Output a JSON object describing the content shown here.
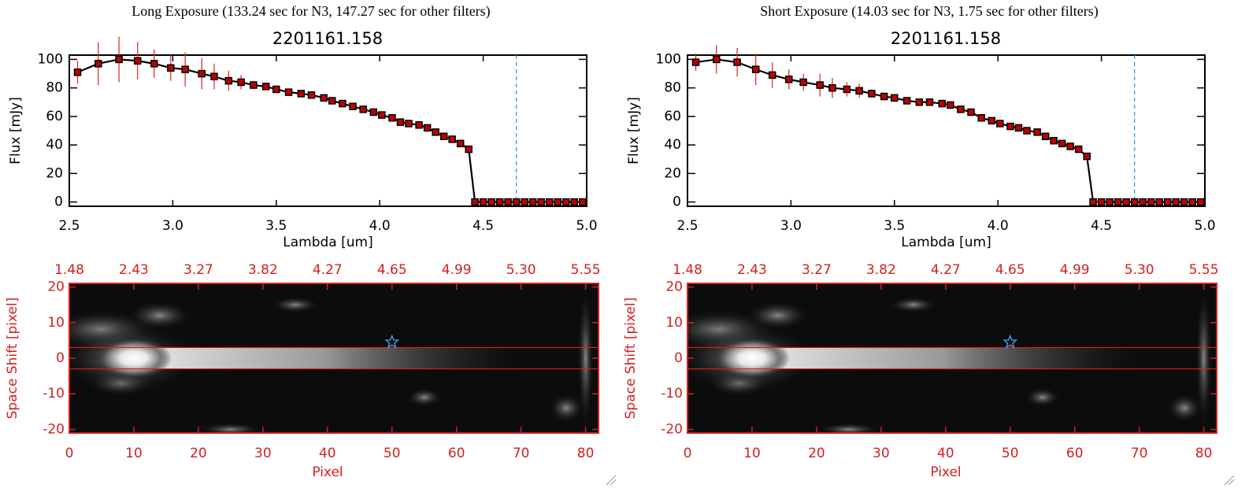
{
  "chart_data": [
    {
      "type": "line",
      "heading": "Long Exposure (133.24 sec for N3, 147.27 sec for other filters)",
      "title": "2201161.158",
      "x_label": "Lambda [um]",
      "y_label": "Flux [mJy]",
      "x": [
        2.54,
        2.64,
        2.74,
        2.83,
        2.91,
        2.99,
        3.06,
        3.14,
        3.2,
        3.27,
        3.33,
        3.39,
        3.45,
        3.5,
        3.56,
        3.62,
        3.67,
        3.73,
        3.77,
        3.82,
        3.87,
        3.92,
        3.97,
        4.01,
        4.06,
        4.1,
        4.14,
        4.19,
        4.23,
        4.27,
        4.31,
        4.35,
        4.39,
        4.43,
        4.46,
        4.5,
        4.54,
        4.58,
        4.62,
        4.66,
        4.7,
        4.74,
        4.78,
        4.82,
        4.86,
        4.9,
        4.94,
        4.98
      ],
      "series": [
        {
          "color": "#000000",
          "marker_color": "#c00000",
          "values": [
            91,
            97,
            100,
            99,
            97,
            94,
            93,
            90,
            88,
            85,
            84,
            82,
            81,
            79,
            77,
            76,
            75,
            73,
            71,
            69,
            67,
            65,
            63,
            61,
            59,
            56,
            55,
            54,
            52,
            49,
            46,
            44,
            41,
            37,
            0,
            0,
            0,
            0,
            0,
            0,
            0,
            0,
            0,
            0,
            0,
            0,
            0,
            0
          ],
          "errors": [
            8,
            15,
            16,
            13,
            10,
            9,
            12,
            11,
            9,
            7,
            5,
            3,
            1,
            1,
            1,
            1,
            1,
            1,
            1,
            1,
            1,
            1,
            1,
            1,
            1,
            1,
            1,
            1,
            1,
            1,
            1,
            1,
            1,
            1,
            0,
            0,
            0,
            0,
            0,
            0,
            0,
            0,
            0,
            0,
            0,
            0,
            0,
            0
          ]
        }
      ],
      "error_color": "#e02020",
      "vline": 4.66,
      "vline_color": "#3a9ad9",
      "xlim": [
        2.5,
        5.0
      ],
      "xticks": [
        {
          "value": 2.5,
          "label": "2.5"
        },
        {
          "value": 3,
          "label": "3.0"
        },
        {
          "value": 3.5,
          "label": "3.5"
        },
        {
          "value": 4,
          "label": "4.0"
        },
        {
          "value": 4.5,
          "label": "4.5"
        },
        {
          "value": 5,
          "label": "5.0"
        }
      ],
      "ylim": [
        -3,
        103
      ],
      "yticks": [
        0,
        20,
        40,
        60,
        80,
        100
      ]
    },
    {
      "type": "image",
      "x_label": "Pixel",
      "y_label": "Space Shift [pixel]",
      "xlim": [
        0,
        82
      ],
      "xticks": [
        0,
        10,
        20,
        30,
        40,
        50,
        60,
        70,
        80
      ],
      "x2ticks": [
        {
          "value": 0,
          "label": "1.48"
        },
        {
          "value": 10,
          "label": "2.43"
        },
        {
          "value": 20,
          "label": "3.27"
        },
        {
          "value": 30,
          "label": "3.82"
        },
        {
          "value": 40,
          "label": "4.27"
        },
        {
          "value": 50,
          "label": "4.65"
        },
        {
          "value": 60,
          "label": "4.99"
        },
        {
          "value": 70,
          "label": "5.30"
        },
        {
          "value": 80,
          "label": "5.55"
        }
      ],
      "ylim": [
        -21,
        21
      ],
      "yticks": [
        -20,
        -10,
        0,
        10,
        20
      ],
      "hlines": [
        3,
        -3
      ],
      "star": [
        50,
        4.5
      ],
      "axis_color": "#d42020"
    },
    {
      "type": "line",
      "heading": "Short Exposure (14.03 sec for N3, 1.75 sec for other filters)",
      "title": "2201161.158",
      "x_label": "Lambda [um]",
      "y_label": "Flux [mJy]",
      "x": [
        2.54,
        2.64,
        2.74,
        2.83,
        2.91,
        2.99,
        3.06,
        3.14,
        3.2,
        3.27,
        3.33,
        3.39,
        3.45,
        3.5,
        3.56,
        3.62,
        3.67,
        3.73,
        3.77,
        3.82,
        3.87,
        3.92,
        3.97,
        4.01,
        4.06,
        4.1,
        4.14,
        4.19,
        4.23,
        4.27,
        4.31,
        4.35,
        4.39,
        4.43,
        4.46,
        4.5,
        4.54,
        4.58,
        4.62,
        4.66,
        4.7,
        4.74,
        4.78,
        4.82,
        4.86,
        4.9,
        4.94,
        4.98
      ],
      "series": [
        {
          "color": "#000000",
          "marker_color": "#c00000",
          "values": [
            98,
            100,
            98,
            93,
            89,
            86,
            84,
            82,
            80,
            79,
            78,
            76,
            74,
            73,
            71,
            70,
            70,
            69,
            68,
            65,
            63,
            59,
            57,
            55,
            53,
            52,
            50,
            49,
            46,
            43,
            41,
            39,
            37,
            32,
            0,
            0,
            0,
            0,
            0,
            0,
            0,
            0,
            0,
            0,
            0,
            0,
            0,
            0
          ],
          "errors": [
            6,
            10,
            10,
            11,
            9,
            7,
            6,
            8,
            7,
            5,
            5,
            3,
            1,
            1,
            1,
            1,
            1,
            1,
            1,
            1,
            1,
            1,
            1,
            1,
            1,
            1,
            1,
            1,
            1,
            1,
            1,
            1,
            1,
            1,
            0,
            0,
            0,
            0,
            0,
            0,
            0,
            0,
            0,
            0,
            0,
            0,
            0,
            0
          ]
        }
      ],
      "error_color": "#e02020",
      "vline": 4.66,
      "vline_color": "#3a9ad9",
      "xlim": [
        2.5,
        5.0
      ],
      "xticks": [
        {
          "value": 2.5,
          "label": "2.5"
        },
        {
          "value": 3,
          "label": "3.0"
        },
        {
          "value": 3.5,
          "label": "3.5"
        },
        {
          "value": 4,
          "label": "4.0"
        },
        {
          "value": 4.5,
          "label": "4.5"
        },
        {
          "value": 5,
          "label": "5.0"
        }
      ],
      "ylim": [
        -3,
        103
      ],
      "yticks": [
        0,
        20,
        40,
        60,
        80,
        100
      ]
    },
    {
      "type": "image",
      "x_label": "Pixel",
      "y_label": "Space Shift [pixel]",
      "xlim": [
        0,
        82
      ],
      "xticks": [
        0,
        10,
        20,
        30,
        40,
        50,
        60,
        70,
        80
      ],
      "x2ticks": [
        {
          "value": 0,
          "label": "1.48"
        },
        {
          "value": 10,
          "label": "2.43"
        },
        {
          "value": 20,
          "label": "3.27"
        },
        {
          "value": 30,
          "label": "3.82"
        },
        {
          "value": 40,
          "label": "4.27"
        },
        {
          "value": 50,
          "label": "4.65"
        },
        {
          "value": 60,
          "label": "4.99"
        },
        {
          "value": 70,
          "label": "5.30"
        },
        {
          "value": 80,
          "label": "5.55"
        }
      ],
      "ylim": [
        -21,
        21
      ],
      "yticks": [
        -20,
        -10,
        0,
        10,
        20
      ],
      "hlines": [
        3,
        -3
      ],
      "star": [
        50,
        4.5
      ],
      "axis_color": "#d42020"
    }
  ]
}
